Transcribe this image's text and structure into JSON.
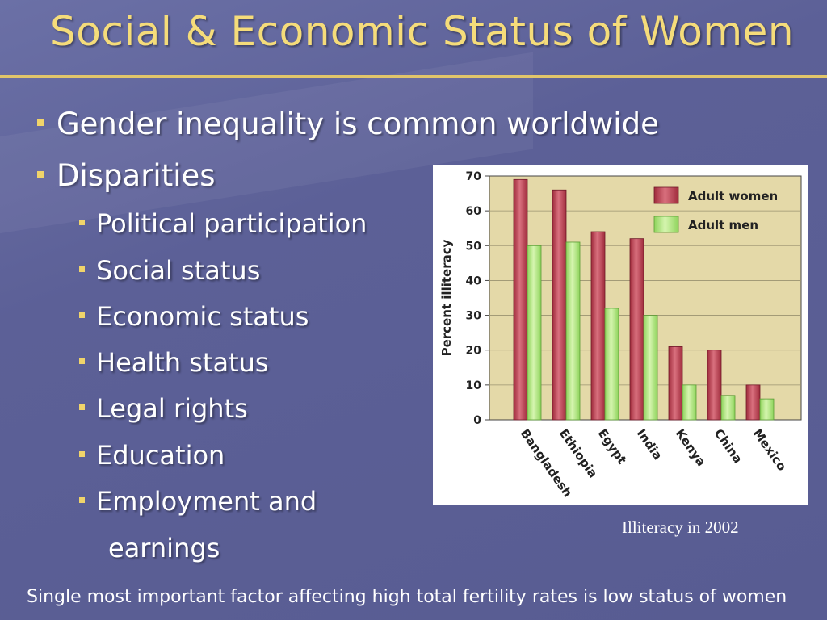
{
  "slide": {
    "title": "Social & Economic Status of Women",
    "bullets_level1": [
      "Gender inequality is common worldwide",
      "Disparities"
    ],
    "bullets_level2": [
      "Political participation",
      "Social status",
      "Economic status",
      "Health status",
      "Legal rights",
      "Education",
      "Employment and"
    ],
    "bullet_continuation": "earnings",
    "caption": "Illiteracy in 2002",
    "footer": "Single most important factor affecting high total fertility rates is low status of women"
  },
  "chart_data": {
    "type": "bar",
    "title": "",
    "xlabel": "",
    "ylabel": "Percent illiteracy",
    "ylim": [
      0,
      70
    ],
    "yticks": [
      0,
      10,
      20,
      30,
      40,
      50,
      60,
      70
    ],
    "categories": [
      "Bangladesh",
      "Ethiopia",
      "Egypt",
      "India",
      "Kenya",
      "China",
      "Mexico"
    ],
    "series": [
      {
        "name": "Adult women",
        "values": [
          69,
          66,
          54,
          52,
          21,
          20,
          10
        ],
        "color": "#a02c3c"
      },
      {
        "name": "Adult men",
        "values": [
          50,
          51,
          32,
          30,
          10,
          7,
          6
        ],
        "color": "#8fd45c"
      }
    ],
    "legend_position": "top-right",
    "plot_background": "#e4d9a8",
    "grid": true
  }
}
